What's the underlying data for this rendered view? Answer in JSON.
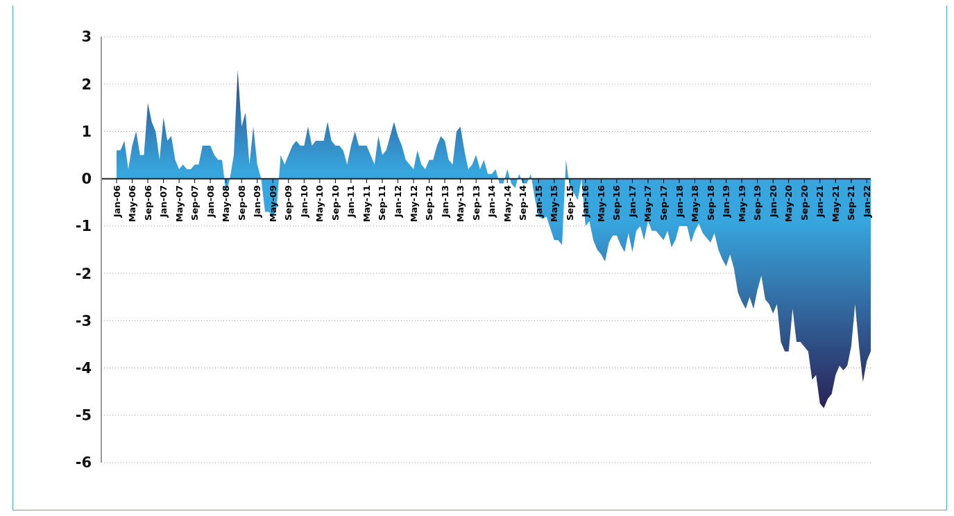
{
  "chart_data": {
    "type": "area",
    "categories": [
      "Jan-06",
      null,
      null,
      null,
      "May-06",
      null,
      null,
      null,
      "Sep-06",
      null,
      null,
      null,
      "Jan-07",
      null,
      null,
      null,
      "May-07",
      null,
      null,
      null,
      "Sep-07",
      null,
      null,
      null,
      "Jan-08",
      null,
      null,
      null,
      "May-08",
      null,
      null,
      null,
      "Sep-08",
      null,
      null,
      null,
      "Jan-09",
      null,
      null,
      null,
      "May-09",
      null,
      null,
      null,
      "Sep-09",
      null,
      null,
      null,
      "Jan-10",
      null,
      null,
      null,
      "May-10",
      null,
      null,
      null,
      "Sep-10",
      null,
      null,
      null,
      "Jan-11",
      null,
      null,
      null,
      "May-11",
      null,
      null,
      null,
      "Sep-11",
      null,
      null,
      null,
      "Jan-12",
      null,
      null,
      null,
      "May-12",
      null,
      null,
      null,
      "Sep-12",
      null,
      null,
      null,
      "Jan-13",
      null,
      null,
      null,
      "May-13",
      null,
      null,
      null,
      "Sep-13",
      null,
      null,
      null,
      "Jan-14",
      null,
      null,
      null,
      "May-14",
      null,
      null,
      null,
      "Sep-14",
      null,
      null,
      null,
      "Jan-15",
      null,
      null,
      null,
      "May-15",
      null,
      null,
      null,
      "Sep-15",
      null,
      null,
      null,
      "Jan-16",
      null,
      null,
      null,
      "May-16",
      null,
      null,
      null,
      "Sep-16",
      null,
      null,
      null,
      "Jan-17",
      null,
      null,
      null,
      "May-17",
      null,
      null,
      null,
      "Sep-17",
      null,
      null,
      null,
      "Jan-18",
      null,
      null,
      null,
      "May-18",
      null,
      null,
      null,
      "Sep-18",
      null,
      null,
      null,
      "Jan-19",
      null,
      null,
      null,
      "May-19",
      null,
      null,
      null,
      "Sep-19",
      null,
      null,
      null,
      "Jan-20",
      null,
      null,
      null,
      "May-20",
      null,
      null,
      null,
      "Sep-20",
      null,
      null,
      null,
      "Jan-21",
      null,
      null,
      null,
      "May-21",
      null,
      null,
      null,
      "Sep-21",
      null,
      null,
      null,
      "Jan-22",
      null
    ],
    "series": [
      {
        "color": "#38a6de",
        "values": [
          0.6,
          0.6,
          0.8,
          0.2,
          0.7,
          1.0,
          0.5,
          0.5,
          1.6,
          1.2,
          1.0,
          0.4,
          1.3,
          0.8,
          0.9,
          0.4,
          0.2,
          0.3,
          0.2,
          0.2,
          0.3,
          0.3,
          0.7,
          0.7,
          0.7,
          0.5,
          0.4,
          0.4,
          -0.3,
          0,
          0.5,
          2.3,
          1.1,
          1.4,
          0.3,
          1.1,
          0.3,
          0,
          -0.7,
          -0.7,
          -0.8,
          -0.6,
          0.5,
          0.3,
          0.5,
          0.7,
          0.8,
          0.7,
          0.7,
          1.1,
          0.7,
          0.8,
          0.8,
          0.8,
          1.2,
          0.8,
          0.7,
          0.7,
          0.6,
          0.3,
          0.7,
          1.0,
          0.7,
          0.7,
          0.7,
          0.5,
          0.3,
          0.9,
          0.5,
          0.6,
          0.9,
          1.2,
          0.9,
          0.7,
          0.4,
          0.3,
          0.2,
          0.6,
          0.3,
          0.2,
          0.4,
          0.4,
          0.7,
          0.9,
          0.8,
          0.4,
          0.3,
          1.0,
          1.1,
          0.6,
          0.2,
          0.3,
          0.5,
          0.2,
          0.4,
          0.1,
          0.1,
          0.2,
          -0.1,
          -0.1,
          0.2,
          -0.1,
          -0.2,
          0.1,
          -0.1,
          -0.1,
          0.1,
          -0.4,
          -0.8,
          -0.85,
          -0.8,
          -1.05,
          -1.3,
          -1.3,
          -1.4,
          0.4,
          -0.2,
          -0.3,
          -0.45,
          0,
          -1.0,
          -0.9,
          -1.3,
          -1.5,
          -1.6,
          -1.75,
          -1.35,
          -1.2,
          -1.2,
          -1.4,
          -1.55,
          -1.15,
          -1.55,
          -1.1,
          -1.0,
          -1.3,
          -0.9,
          -1.1,
          -1.1,
          -1.2,
          -1.3,
          -1.1,
          -1.45,
          -1.3,
          -1.0,
          -1.0,
          -1.0,
          -1.35,
          -1.1,
          -0.95,
          -1.15,
          -1.25,
          -1.35,
          -1.15,
          -1.5,
          -1.7,
          -1.85,
          -1.6,
          -1.9,
          -2.4,
          -2.6,
          -2.75,
          -2.5,
          -2.75,
          -2.35,
          -2.05,
          -2.55,
          -2.65,
          -2.85,
          -2.65,
          -3.45,
          -3.65,
          -3.65,
          -2.75,
          -3.45,
          -3.45,
          -3.55,
          -3.65,
          -4.25,
          -4.15,
          -4.75,
          -4.85,
          -4.65,
          -4.55,
          -4.15,
          -3.95,
          -4.05,
          -3.95,
          -3.55,
          -2.65,
          -3.55,
          -4.3,
          -3.85,
          -3.65
        ]
      }
    ],
    "ylim": [
      -6,
      3
    ],
    "yticks": [
      -6,
      -5,
      -4,
      -3,
      -2,
      -1,
      0,
      1,
      2,
      3
    ],
    "grid": "y"
  }
}
